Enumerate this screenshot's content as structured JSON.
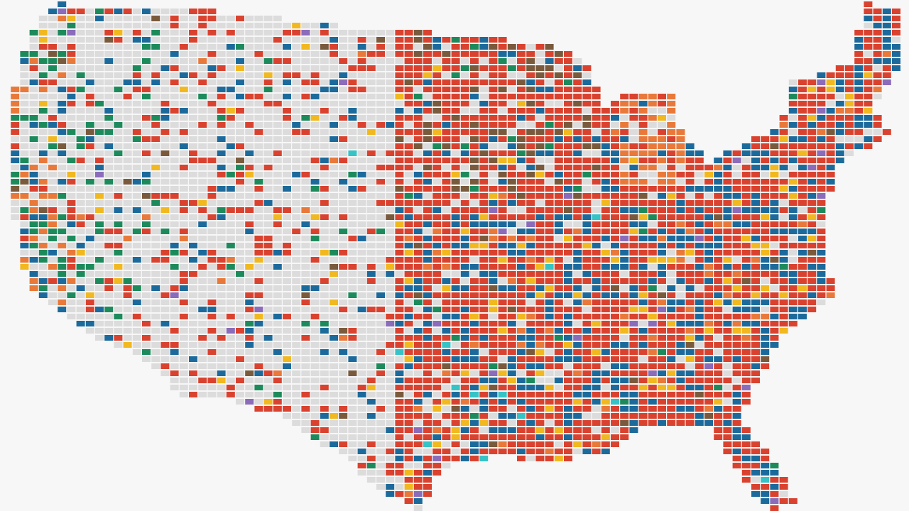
{
  "map": {
    "colors": [
      "#dcdcdc",
      "#d9422f",
      "#1c6a9b",
      "#f1b81f",
      "#1d8a5c",
      "#7a5a3c",
      "#e9793a",
      "#8b6cba",
      "#35c3c6"
    ]
  }
}
